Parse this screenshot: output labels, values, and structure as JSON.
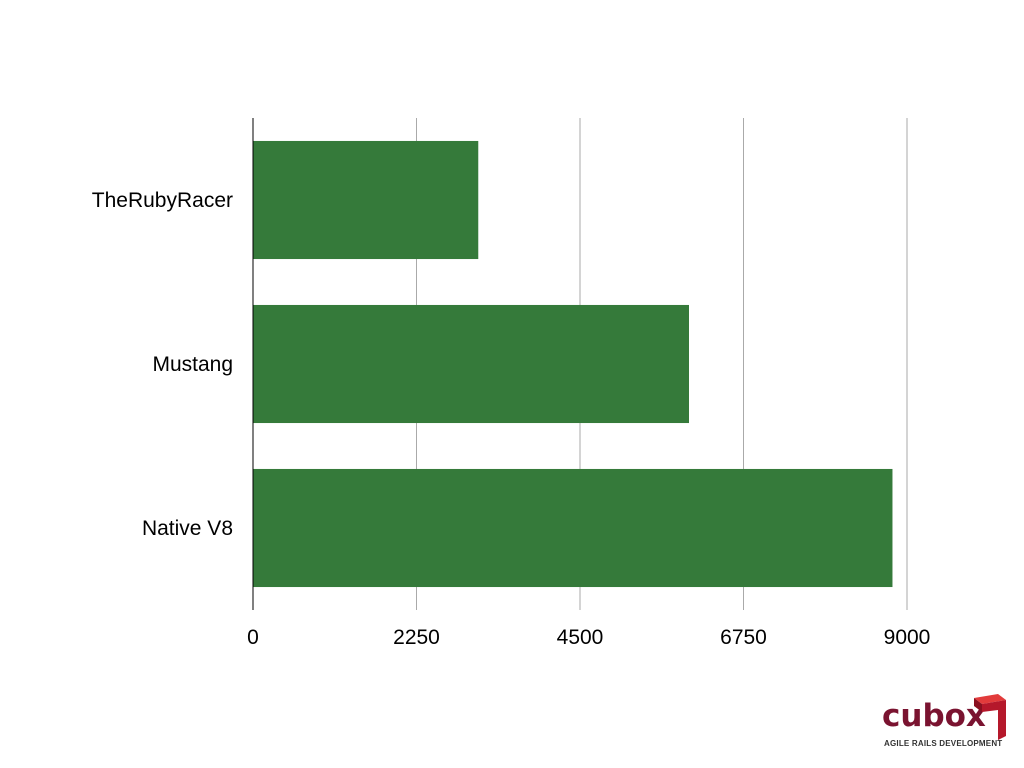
{
  "chart_data": {
    "type": "bar",
    "orientation": "horizontal",
    "categories": [
      "TheRubyRacer",
      "Mustang",
      "Native V8"
    ],
    "values": [
      3100,
      6000,
      8800
    ],
    "xlim": [
      0,
      9000
    ],
    "xticks": [
      "0",
      "2250",
      "4500",
      "6750",
      "9000"
    ],
    "grid": true,
    "bar_color": "#357a3a",
    "grid_color": "#aaaaaa",
    "axis_color": "#000000"
  },
  "logo": {
    "word": "cubox",
    "tagline": "AGILE RAILS DEVELOPMENT",
    "colors": {
      "word": "#7a1330",
      "cube_front": "#b5182b",
      "cube_top": "#e23b3b",
      "cube_side": "#8a0f1f"
    }
  }
}
